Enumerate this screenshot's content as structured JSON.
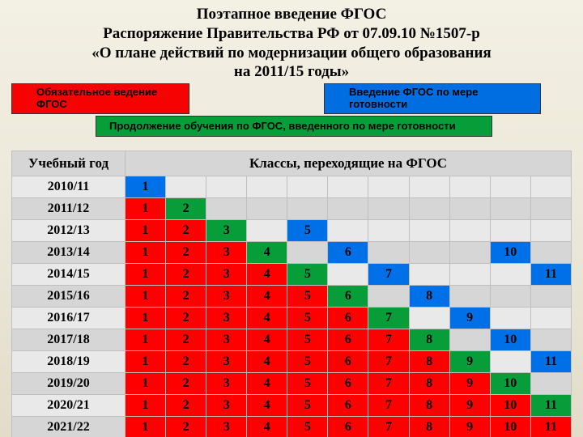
{
  "title_lines": [
    "Поэтапное введение ФГОС",
    "Распоряжение Правительства РФ от 07.09.10 №1507-р",
    "«О плане действий по модернизации общего образования",
    "на 2011/15 годы»"
  ],
  "legend": {
    "red": "Обязательное ведение ФГОС",
    "blue": "Введение ФГОС по мере готовности",
    "green": "Продолжение обучения по ФГОС, введенного по мере готовности"
  },
  "colors": {
    "red_bg": "#fe0000",
    "blue_bg": "#0070e8",
    "green_bg": "#079e3a",
    "grid": "#bfbfbf",
    "header_bg": "#d6d6d6",
    "alt_bg": "#e9e9e9",
    "page_bg": "#f0ede2"
  },
  "table": {
    "type": "table",
    "year_header": "Учебный год",
    "classes_header": "Классы, переходящие на ФГОС",
    "column_count": 11,
    "rows": [
      {
        "year": "2010/11",
        "cells": [
          {
            "v": 1,
            "c": "blue"
          },
          {
            "v": "",
            "c": "empty"
          },
          {
            "v": "",
            "c": "empty"
          },
          {
            "v": "",
            "c": "empty"
          },
          {
            "v": "",
            "c": "empty"
          },
          {
            "v": "",
            "c": "empty"
          },
          {
            "v": "",
            "c": "empty"
          },
          {
            "v": "",
            "c": "empty"
          },
          {
            "v": "",
            "c": "empty"
          },
          {
            "v": "",
            "c": "empty"
          },
          {
            "v": "",
            "c": "empty"
          }
        ]
      },
      {
        "year": "2011/12",
        "cells": [
          {
            "v": 1,
            "c": "red"
          },
          {
            "v": 2,
            "c": "green"
          },
          {
            "v": "",
            "c": "empty"
          },
          {
            "v": "",
            "c": "empty"
          },
          {
            "v": "",
            "c": "empty"
          },
          {
            "v": "",
            "c": "empty"
          },
          {
            "v": "",
            "c": "empty"
          },
          {
            "v": "",
            "c": "empty"
          },
          {
            "v": "",
            "c": "empty"
          },
          {
            "v": "",
            "c": "empty"
          },
          {
            "v": "",
            "c": "empty"
          }
        ]
      },
      {
        "year": "2012/13",
        "cells": [
          {
            "v": 1,
            "c": "red"
          },
          {
            "v": 2,
            "c": "red"
          },
          {
            "v": 3,
            "c": "green"
          },
          {
            "v": "",
            "c": "empty"
          },
          {
            "v": 5,
            "c": "blue"
          },
          {
            "v": "",
            "c": "empty"
          },
          {
            "v": "",
            "c": "empty"
          },
          {
            "v": "",
            "c": "empty"
          },
          {
            "v": "",
            "c": "empty"
          },
          {
            "v": "",
            "c": "empty"
          },
          {
            "v": "",
            "c": "empty"
          }
        ]
      },
      {
        "year": "2013/14",
        "cells": [
          {
            "v": 1,
            "c": "red"
          },
          {
            "v": 2,
            "c": "red"
          },
          {
            "v": 3,
            "c": "red"
          },
          {
            "v": 4,
            "c": "green"
          },
          {
            "v": "",
            "c": "empty"
          },
          {
            "v": 6,
            "c": "blue"
          },
          {
            "v": "",
            "c": "empty"
          },
          {
            "v": "",
            "c": "empty"
          },
          {
            "v": "",
            "c": "empty"
          },
          {
            "v": 10,
            "c": "blue"
          },
          {
            "v": "",
            "c": "empty"
          }
        ]
      },
      {
        "year": "2014/15",
        "cells": [
          {
            "v": 1,
            "c": "red"
          },
          {
            "v": 2,
            "c": "red"
          },
          {
            "v": 3,
            "c": "red"
          },
          {
            "v": 4,
            "c": "red"
          },
          {
            "v": 5,
            "c": "green"
          },
          {
            "v": "",
            "c": "empty"
          },
          {
            "v": 7,
            "c": "blue"
          },
          {
            "v": "",
            "c": "empty"
          },
          {
            "v": "",
            "c": "empty"
          },
          {
            "v": "",
            "c": "empty"
          },
          {
            "v": 11,
            "c": "blue"
          }
        ]
      },
      {
        "year": "2015/16",
        "cells": [
          {
            "v": 1,
            "c": "red"
          },
          {
            "v": 2,
            "c": "red"
          },
          {
            "v": 3,
            "c": "red"
          },
          {
            "v": 4,
            "c": "red"
          },
          {
            "v": 5,
            "c": "red"
          },
          {
            "v": 6,
            "c": "green"
          },
          {
            "v": "",
            "c": "empty"
          },
          {
            "v": 8,
            "c": "blue"
          },
          {
            "v": "",
            "c": "empty"
          },
          {
            "v": "",
            "c": "empty"
          },
          {
            "v": "",
            "c": "empty"
          }
        ]
      },
      {
        "year": "2016/17",
        "cells": [
          {
            "v": 1,
            "c": "red"
          },
          {
            "v": 2,
            "c": "red"
          },
          {
            "v": 3,
            "c": "red"
          },
          {
            "v": 4,
            "c": "red"
          },
          {
            "v": 5,
            "c": "red"
          },
          {
            "v": 6,
            "c": "red"
          },
          {
            "v": 7,
            "c": "green"
          },
          {
            "v": "",
            "c": "empty"
          },
          {
            "v": 9,
            "c": "blue"
          },
          {
            "v": "",
            "c": "empty"
          },
          {
            "v": "",
            "c": "empty"
          }
        ]
      },
      {
        "year": "2017/18",
        "cells": [
          {
            "v": 1,
            "c": "red"
          },
          {
            "v": 2,
            "c": "red"
          },
          {
            "v": 3,
            "c": "red"
          },
          {
            "v": 4,
            "c": "red"
          },
          {
            "v": 5,
            "c": "red"
          },
          {
            "v": 6,
            "c": "red"
          },
          {
            "v": 7,
            "c": "red"
          },
          {
            "v": 8,
            "c": "green"
          },
          {
            "v": "",
            "c": "empty"
          },
          {
            "v": 10,
            "c": "blue"
          },
          {
            "v": "",
            "c": "empty"
          }
        ]
      },
      {
        "year": "2018/19",
        "cells": [
          {
            "v": 1,
            "c": "red"
          },
          {
            "v": 2,
            "c": "red"
          },
          {
            "v": 3,
            "c": "red"
          },
          {
            "v": 4,
            "c": "red"
          },
          {
            "v": 5,
            "c": "red"
          },
          {
            "v": 6,
            "c": "red"
          },
          {
            "v": 7,
            "c": "red"
          },
          {
            "v": 8,
            "c": "red"
          },
          {
            "v": 9,
            "c": "green"
          },
          {
            "v": "",
            "c": "empty"
          },
          {
            "v": 11,
            "c": "blue"
          }
        ]
      },
      {
        "year": "2019/20",
        "cells": [
          {
            "v": 1,
            "c": "red"
          },
          {
            "v": 2,
            "c": "red"
          },
          {
            "v": 3,
            "c": "red"
          },
          {
            "v": 4,
            "c": "red"
          },
          {
            "v": 5,
            "c": "red"
          },
          {
            "v": 6,
            "c": "red"
          },
          {
            "v": 7,
            "c": "red"
          },
          {
            "v": 8,
            "c": "red"
          },
          {
            "v": 9,
            "c": "red"
          },
          {
            "v": 10,
            "c": "green"
          },
          {
            "v": "",
            "c": "empty"
          }
        ]
      },
      {
        "year": "2020/21",
        "cells": [
          {
            "v": 1,
            "c": "red"
          },
          {
            "v": 2,
            "c": "red"
          },
          {
            "v": 3,
            "c": "red"
          },
          {
            "v": 4,
            "c": "red"
          },
          {
            "v": 5,
            "c": "red"
          },
          {
            "v": 6,
            "c": "red"
          },
          {
            "v": 7,
            "c": "red"
          },
          {
            "v": 8,
            "c": "red"
          },
          {
            "v": 9,
            "c": "red"
          },
          {
            "v": 10,
            "c": "red"
          },
          {
            "v": 11,
            "c": "green"
          }
        ]
      },
      {
        "year": "2021/22",
        "cells": [
          {
            "v": 1,
            "c": "red"
          },
          {
            "v": 2,
            "c": "red"
          },
          {
            "v": 3,
            "c": "red"
          },
          {
            "v": 4,
            "c": "red"
          },
          {
            "v": 5,
            "c": "red"
          },
          {
            "v": 6,
            "c": "red"
          },
          {
            "v": 7,
            "c": "red"
          },
          {
            "v": 8,
            "c": "red"
          },
          {
            "v": 9,
            "c": "red"
          },
          {
            "v": 10,
            "c": "red"
          },
          {
            "v": 11,
            "c": "red"
          }
        ]
      }
    ]
  }
}
